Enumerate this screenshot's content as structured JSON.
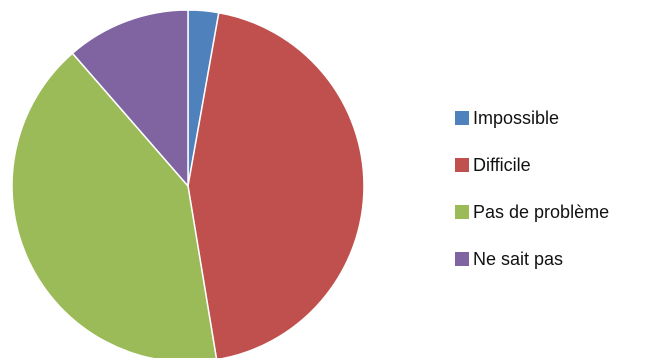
{
  "chart_data": {
    "type": "pie",
    "title": "",
    "legend_position": "right",
    "start_angle_deg": 0,
    "direction": "clockwise",
    "slices": [
      {
        "label": "Impossible",
        "value": 2.8,
        "color": "#4F81BD"
      },
      {
        "label": "Difficile",
        "value": 44.6,
        "color": "#C0504D"
      },
      {
        "label": "Pas de problème",
        "value": 41.2,
        "color": "#9BBB59"
      },
      {
        "label": "Ne sait pas",
        "value": 11.4,
        "color": "#8064A2"
      }
    ]
  }
}
